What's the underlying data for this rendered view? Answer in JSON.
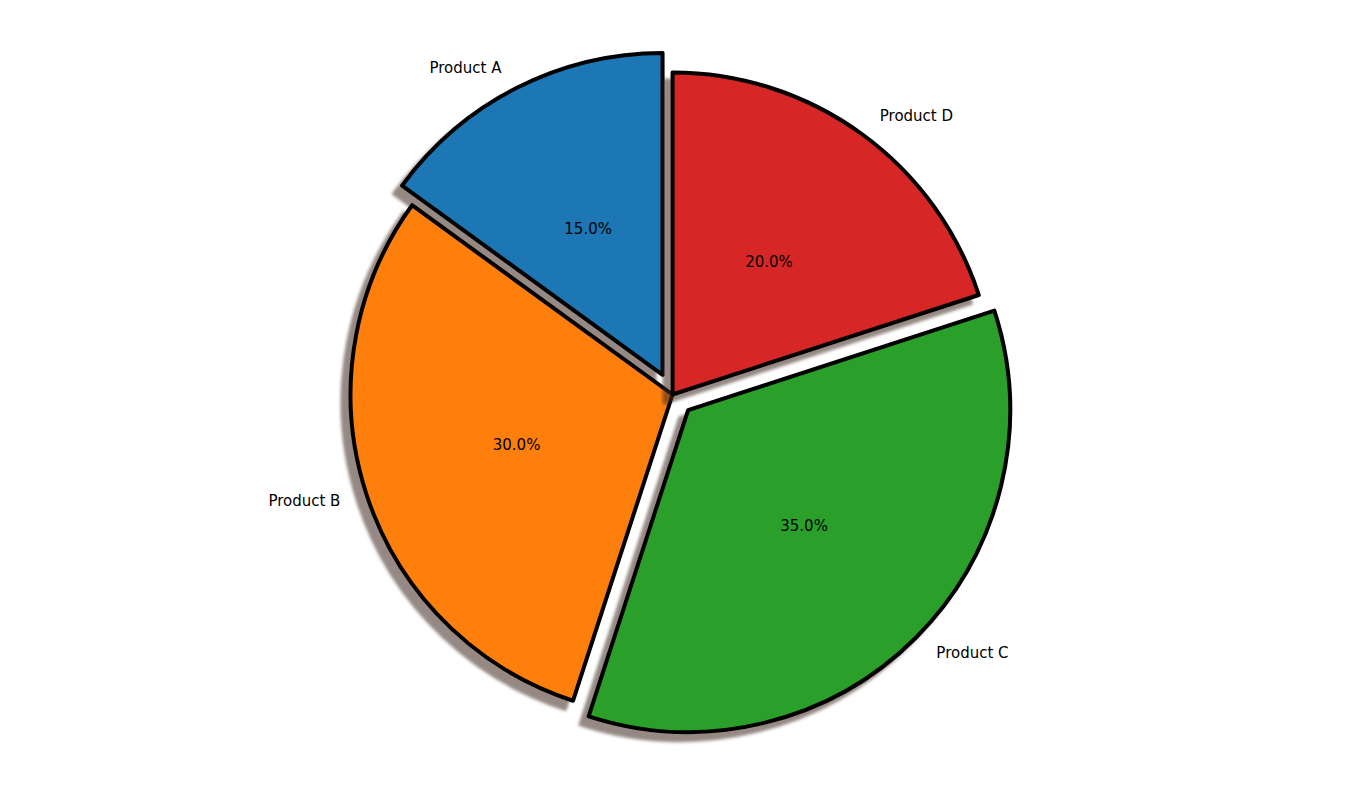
{
  "chart_data": {
    "type": "pie",
    "categories": [
      "Product A",
      "Product B",
      "Product C",
      "Product D"
    ],
    "values": [
      15,
      30,
      35,
      20
    ],
    "value_labels": [
      "15.0%",
      "30.0%",
      "35.0%",
      "20.0%"
    ],
    "colors": [
      "#1f77b4",
      "#ff7f0e",
      "#2ca02c",
      "#d62728"
    ],
    "data_labels": true
  }
}
